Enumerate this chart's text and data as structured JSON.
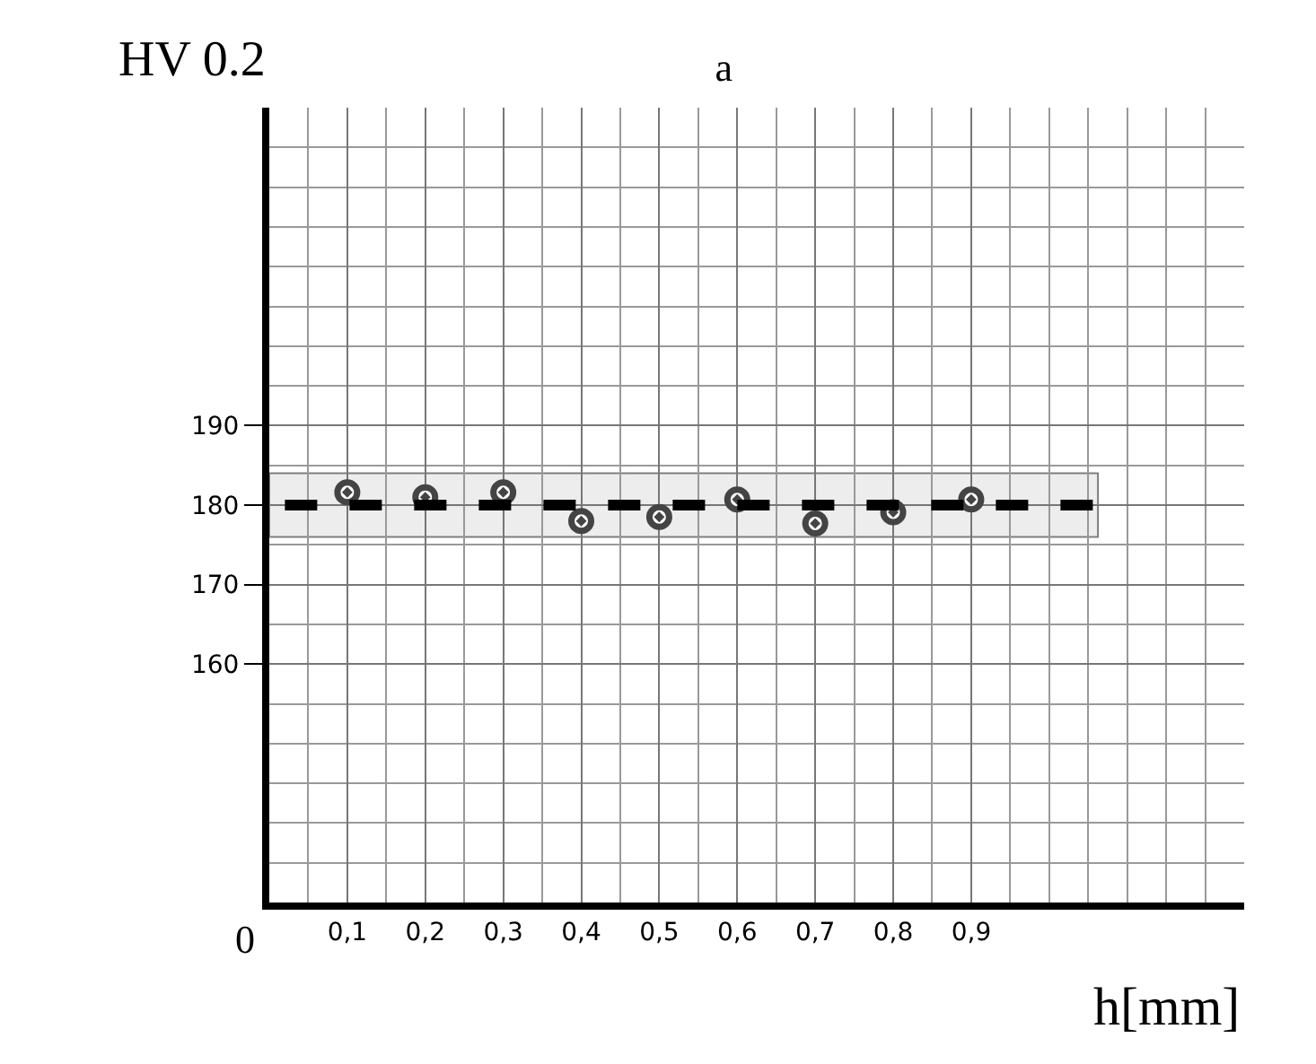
{
  "chart_data": {
    "type": "scatter",
    "title": "a",
    "xlabel": "h[mm]",
    "ylabel": "HV 0.2",
    "x": [
      0.1,
      0.2,
      0.3,
      0.4,
      0.5,
      0.6,
      0.7,
      0.8,
      0.9
    ],
    "series": [
      {
        "color": "#444444",
        "values": [
          181.6,
          181.0,
          181.6,
          178.0,
          178.5,
          180.7,
          177.7,
          179.1,
          180.7
        ]
      }
    ],
    "marker": "circle",
    "xlim": [
      0,
      1.25
    ],
    "ylim": [
      130,
      230
    ],
    "xticks": [
      {
        "value": 0.1,
        "label": "0,1"
      },
      {
        "value": 0.2,
        "label": "0,2"
      },
      {
        "value": 0.3,
        "label": "0,3"
      },
      {
        "value": 0.4,
        "label": "0,4"
      },
      {
        "value": 0.5,
        "label": "0,5"
      },
      {
        "value": 0.6,
        "label": "0,6"
      },
      {
        "value": 0.7,
        "label": "0,7"
      },
      {
        "value": 0.8,
        "label": "0,8"
      },
      {
        "value": 0.9,
        "label": "0,9"
      }
    ],
    "yticks": [
      160,
      170,
      180,
      190
    ],
    "ref_lines": [
      {
        "axis": "y",
        "value": 180,
        "color": "#000000",
        "line_style": "dashed"
      }
    ],
    "bands": [
      {
        "axis": "y",
        "from": 176,
        "to": 184,
        "color": "#dddddd"
      }
    ],
    "annotations": [
      "0"
    ],
    "grid": true
  }
}
